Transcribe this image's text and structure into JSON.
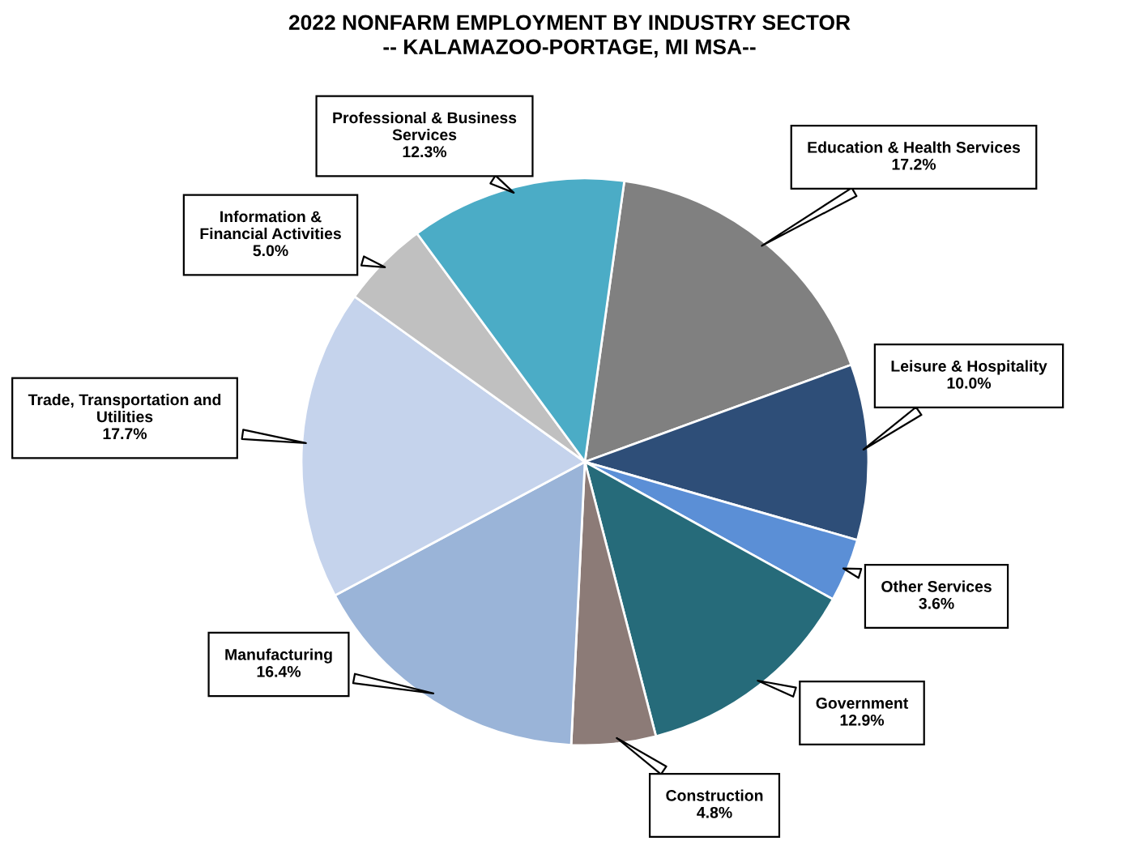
{
  "chart_data": {
    "type": "pie",
    "title": "2022 NONFARM EMPLOYMENT BY INDUSTRY SECTOR",
    "subtitle": "-- KALAMAZOO-PORTAGE, MI MSA--",
    "categories": [
      "Education & Health Services",
      "Leisure & Hospitality",
      "Other Services",
      "Government",
      "Construction",
      "Manufacturing",
      "Trade, Transportation and\nUtilities",
      "Information &\nFinancial Activities",
      "Professional & Business\nServices"
    ],
    "values": [
      17.2,
      10.0,
      3.6,
      12.9,
      4.8,
      16.4,
      17.7,
      5.0,
      12.3
    ],
    "value_labels": [
      "17.2%",
      "10.0%",
      "3.6%",
      "12.9%",
      "4.8%",
      "16.4%",
      "17.7%",
      "5.0%",
      "12.3%"
    ],
    "colors": [
      "#808080",
      "#2e4e78",
      "#5b8fd6",
      "#266b7a",
      "#8c7b77",
      "#9ab4d8",
      "#c5d3ec",
      "#c0c0c0",
      "#4bacc6"
    ],
    "legend": false
  }
}
